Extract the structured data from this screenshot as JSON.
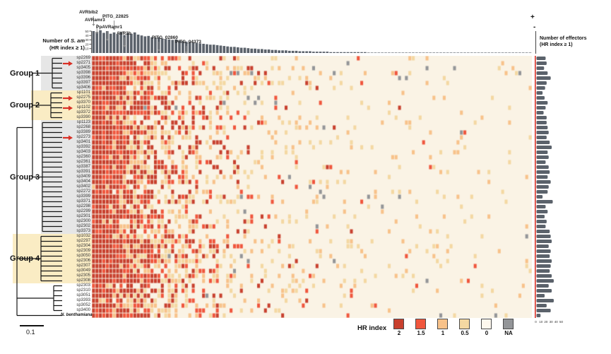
{
  "figure": {
    "top_chart": {
      "label_prefix": "Number of ",
      "label_species": "S. am",
      "label_line2": "(HR index ≥ 1)"
    },
    "right_chart": {
      "plus": "+",
      "minus": "-",
      "label_line1": "Number of effectors",
      "label_line2": "(HR index ≥ 1)"
    },
    "tree": {
      "scale_label": "0.1"
    },
    "groups": [
      {
        "id": "g1",
        "label": "Group 1",
        "band": "#e6e6e6"
      },
      {
        "id": "g2",
        "label": "Group 2",
        "band": "#faecc4"
      },
      {
        "id": "g3",
        "label": "Group 3",
        "band": "#e6e6e6"
      },
      {
        "id": "g4",
        "label": "Group 4",
        "band": "#faecc4"
      }
    ],
    "rows": [
      {
        "name": "sp2269",
        "group": "g1"
      },
      {
        "name": "sp2271",
        "group": "g1",
        "arrow": true
      },
      {
        "name": "sp3405",
        "group": "g1"
      },
      {
        "name": "sp3398",
        "group": "g1"
      },
      {
        "name": "sp3396",
        "group": "g1"
      },
      {
        "name": "sp3397",
        "group": "g1"
      },
      {
        "name": "sp3406",
        "group": "g1"
      },
      {
        "name": "sp1101",
        "group": "g2"
      },
      {
        "name": "sp2275",
        "group": "g2",
        "arrow": true
      },
      {
        "name": "sp3370",
        "group": "g2"
      },
      {
        "name": "sp1102",
        "group": "g2",
        "arrow": true
      },
      {
        "name": "sp3372",
        "group": "g2"
      },
      {
        "name": "sp3390",
        "group": "g2"
      },
      {
        "name": "sp1123",
        "group": "g3"
      },
      {
        "name": "sp2268",
        "group": "g3"
      },
      {
        "name": "sp3389",
        "group": "g3"
      },
      {
        "name": "sp2273",
        "group": "g3",
        "arrow": true
      },
      {
        "name": "sp3401",
        "group": "g3"
      },
      {
        "name": "sp3392",
        "group": "g3"
      },
      {
        "name": "sp3403",
        "group": "g3"
      },
      {
        "name": "sp2360",
        "group": "g3"
      },
      {
        "name": "sp2361",
        "group": "g3"
      },
      {
        "name": "sp3387",
        "group": "g3"
      },
      {
        "name": "sp3391",
        "group": "g3"
      },
      {
        "name": "sp3409",
        "group": "g3"
      },
      {
        "name": "sp3404",
        "group": "g3"
      },
      {
        "name": "sp3402",
        "group": "g3"
      },
      {
        "name": "sp2272",
        "group": "g3"
      },
      {
        "name": "sp3399",
        "group": "g3"
      },
      {
        "name": "sp3371",
        "group": "g3"
      },
      {
        "name": "sp2298",
        "group": "g3"
      },
      {
        "name": "sp2299",
        "group": "g3"
      },
      {
        "name": "sp2301",
        "group": "g3"
      },
      {
        "name": "sp2300",
        "group": "g3"
      },
      {
        "name": "sp2302",
        "group": "g3"
      },
      {
        "name": "sp3373",
        "group": "g3"
      },
      {
        "name": "sp1032",
        "group": "g4"
      },
      {
        "name": "sp2297",
        "group": "g4"
      },
      {
        "name": "sp2304",
        "group": "g4"
      },
      {
        "name": "sp2309",
        "group": "g4"
      },
      {
        "name": "sp3050",
        "group": "g4"
      },
      {
        "name": "sp2306",
        "group": "g4"
      },
      {
        "name": "sp2307",
        "group": "g4"
      },
      {
        "name": "sp3049",
        "group": "g4"
      },
      {
        "name": "sp2305",
        "group": "g4"
      },
      {
        "name": "sp2308",
        "group": "g4"
      },
      {
        "name": "sp2303",
        "group": "none"
      },
      {
        "name": "sp2310",
        "group": "none"
      },
      {
        "name": "sp3051",
        "group": "none"
      },
      {
        "name": "sp3393",
        "group": "none"
      },
      {
        "name": "sp3052",
        "group": "none"
      },
      {
        "name": "sp3400",
        "group": "none"
      },
      {
        "name": "N. benthamiana",
        "group": "out"
      }
    ],
    "legend": {
      "title": "HR index",
      "items": [
        {
          "label": "2",
          "color": "#c8402e"
        },
        {
          "label": "1.5",
          "color": "#f0563d"
        },
        {
          "label": "1",
          "color": "#f8c28a"
        },
        {
          "label": "0.5",
          "color": "#f4d8a2"
        },
        {
          "label": "0",
          "color": "#fdf8ee"
        },
        {
          "label": "NA",
          "color": "#939598"
        }
      ]
    },
    "heatmap_render": {
      "cols": 128,
      "seed": 7,
      "na_rows": [
        2,
        3,
        8,
        9,
        27,
        28,
        41
      ],
      "bg": "#faf3e5",
      "bar_color": "#5b626b",
      "accent_red": "#d93025",
      "colors": {
        "2": "#c8402e",
        "1.5": "#f0563d",
        "1": "#f8c28a",
        "0.5": "#f4d8a2",
        "0": "#fbf4e7",
        "NA": "#939598"
      }
    }
  },
  "chart_data": [
    {
      "type": "bar",
      "title": "Number of S. am (HR index ≥ 1)",
      "orientation": "vertical",
      "xlabel": "effectors (heatmap columns, sorted descending)",
      "ylim": [
        0,
        50
      ],
      "yticks": [
        10,
        20,
        30,
        40,
        50
      ],
      "values": [
        50,
        48,
        52,
        46,
        50,
        44,
        47,
        43,
        48,
        41,
        45,
        44,
        47,
        42,
        40,
        38,
        39,
        36,
        35,
        36,
        33,
        32,
        31,
        30,
        31,
        28,
        27,
        26,
        25,
        24,
        23,
        22,
        21,
        20,
        19,
        19,
        18,
        17,
        16,
        15,
        14,
        14,
        13,
        12,
        12,
        11,
        10,
        10,
        9,
        9,
        8,
        8,
        7,
        7,
        6,
        6,
        6,
        5,
        5,
        5,
        4,
        4,
        4,
        4,
        3,
        3,
        3,
        3,
        3,
        2,
        2,
        2,
        2,
        2,
        2,
        2,
        2,
        2,
        2,
        2,
        1,
        1,
        1,
        1,
        1,
        1,
        1,
        1,
        1,
        1,
        1,
        1,
        1,
        1,
        1,
        1,
        1,
        1,
        1,
        1,
        1,
        1,
        1,
        1,
        1,
        1,
        1,
        1,
        1,
        1,
        1,
        1,
        1,
        1,
        1,
        1,
        1,
        1,
        1,
        1,
        1,
        1,
        1,
        1,
        1,
        1,
        1,
        1
      ],
      "labeled_effectors": [
        {
          "name": "AVRblb2",
          "col": 0
        },
        {
          "name": "AVRamr3",
          "col": 1
        },
        {
          "name": "PpAVRamr1",
          "col": 4
        },
        {
          "name": "PITG_22825",
          "col": 6
        },
        {
          "name": "AVR3b",
          "col": 9
        },
        {
          "name": "PITG_02860",
          "col": 19
        },
        {
          "name": "PITG_04373",
          "col": 27
        }
      ]
    },
    {
      "type": "bar",
      "title": "Number of effectors (HR index ≥ 1)",
      "orientation": "horizontal",
      "xlim": [
        0,
        50
      ],
      "xticks": [
        0,
        10,
        20,
        30,
        40,
        50
      ],
      "values": [
        18,
        20,
        15,
        22,
        28,
        20,
        17,
        12,
        16,
        22,
        18,
        14,
        20,
        20,
        22,
        24,
        20,
        26,
        30,
        22,
        24,
        18,
        24,
        26,
        22,
        28,
        24,
        22,
        12,
        32,
        18,
        22,
        16,
        20,
        18,
        26,
        28,
        30,
        24,
        28,
        26,
        30,
        28,
        26,
        30,
        34,
        24,
        30,
        16,
        34,
        20,
        28,
        8
      ]
    },
    {
      "type": "heatmap",
      "title": "HR index of effector responses",
      "rows": 53,
      "cols": 128,
      "scale_labels": [
        "2",
        "1.5",
        "1",
        "0.5",
        "0",
        "NA"
      ],
      "legend_position": "bottom"
    }
  ]
}
